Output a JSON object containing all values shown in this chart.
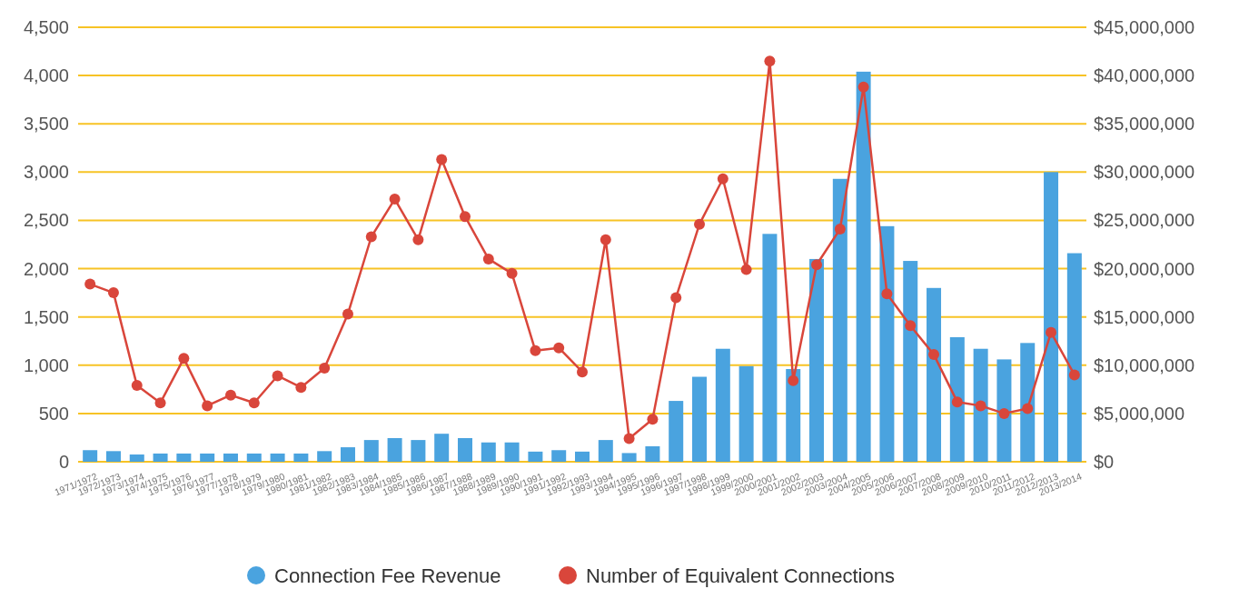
{
  "chart_data": {
    "type": "bar",
    "categories": [
      "1971/1972",
      "1972/1973",
      "1973/1974",
      "1974/1975",
      "1975/1976",
      "1976/1977",
      "1977/1978",
      "1978/1979",
      "1979/1980",
      "1980/1981",
      "1981/1982",
      "1982/1983",
      "1983/1984",
      "1984/1985",
      "1985/1986",
      "1986/1987",
      "1987/1988",
      "1988/1989",
      "1989/1990",
      "1990/1991",
      "1991/1992",
      "1992/1993",
      "1993/1994",
      "1994/1995",
      "1995/1996",
      "1996/1997",
      "1997/1998",
      "1998/1999",
      "1999/2000",
      "2000/2001",
      "2001/2002",
      "2002/2003",
      "2003/2004",
      "2004/2005",
      "2005/2006",
      "2006/2007",
      "2007/2008",
      "2008/2009",
      "2009/2010",
      "2010/2011",
      "2011/2012",
      "2012/2013",
      "2013/2014"
    ],
    "series": [
      {
        "name": "Connection Fee Revenue",
        "axis": "y2",
        "color": "#4aa3df",
        "values": [
          1200000,
          1100000,
          750000,
          850000,
          850000,
          850000,
          850000,
          850000,
          850000,
          850000,
          1100000,
          1500000,
          2250000,
          2450000,
          2250000,
          2900000,
          2450000,
          2000000,
          2000000,
          1050000,
          1200000,
          1050000,
          2250000,
          900000,
          1600000,
          6300000,
          8800000,
          11700000,
          9900000,
          23600000,
          9600000,
          21000000,
          29300000,
          40400000,
          24400000,
          20800000,
          18000000,
          12900000,
          11700000,
          10600000,
          12300000,
          30000000,
          21600000
        ]
      },
      {
        "name": "Number of Equivalent Connections",
        "type": "line",
        "color": "#d9463b",
        "marker": "circle",
        "values": [
          1840,
          1750,
          790,
          610,
          1070,
          580,
          690,
          610,
          890,
          770,
          970,
          1530,
          2330,
          2720,
          2300,
          3130,
          2540,
          2100,
          1950,
          1150,
          1180,
          930,
          2300,
          240,
          440,
          1700,
          2460,
          2930,
          1990,
          4150,
          840,
          2040,
          2410,
          3880,
          1740,
          1410,
          1110,
          620,
          580,
          500,
          550,
          1340,
          900
        ]
      }
    ],
    "ylim": [
      0,
      4500
    ],
    "yticks": [
      0,
      500,
      {
        "value": 1000,
        "label": "1,000"
      },
      {
        "value": 1500,
        "label": "1,500"
      },
      {
        "value": 2000,
        "label": "2,000"
      },
      {
        "value": 2500,
        "label": "2,500"
      },
      {
        "value": 3000,
        "label": "3,000"
      },
      {
        "value": 3500,
        "label": "3,500"
      },
      {
        "value": 4000,
        "label": "4,000"
      },
      {
        "value": 4500,
        "label": "4,500"
      }
    ],
    "y2lim": [
      0,
      45000000
    ],
    "y2ticks": [
      {
        "value": 0,
        "label": "$0"
      },
      {
        "value": 5000000,
        "label": "$5,000,000"
      },
      {
        "value": 10000000,
        "label": "$10,000,000"
      },
      {
        "value": 15000000,
        "label": "$15,000,000"
      },
      {
        "value": 20000000,
        "label": "$20,000,000"
      },
      {
        "value": 25000000,
        "label": "$25,000,000"
      },
      {
        "value": 30000000,
        "label": "$30,000,000"
      },
      {
        "value": 35000000,
        "label": "$35,000,000"
      },
      {
        "value": 40000000,
        "label": "$40,000,000"
      },
      {
        "value": 45000000,
        "label": "$45,000,000"
      }
    ],
    "grid": "y",
    "legend": "bottom"
  }
}
